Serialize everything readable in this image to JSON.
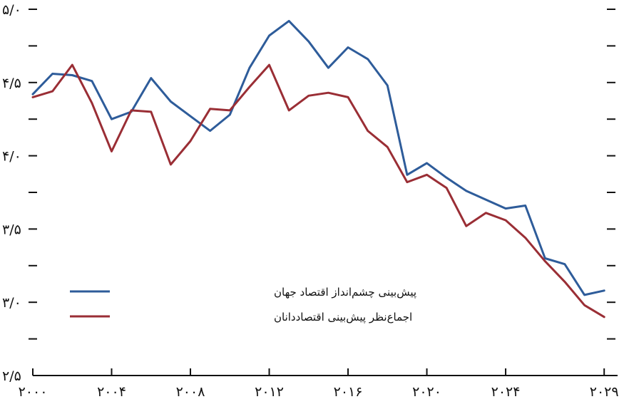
{
  "chart_data": {
    "type": "line",
    "title": "",
    "xlabel": "",
    "ylabel": "",
    "xlim": [
      2000,
      2029.5
    ],
    "ylim": [
      2.5,
      5.0
    ],
    "y_ticks": [
      2.5,
      3.0,
      3.5,
      4.0,
      4.5,
      5.0
    ],
    "y_tick_labels": [
      "۲/۵",
      "۳/۰",
      "۳/۵",
      "۴/۰",
      "۴/۵",
      "۵/۰"
    ],
    "x_ticks": [
      2000,
      2004,
      2008,
      2012,
      2016,
      2020,
      2024,
      2029
    ],
    "x_tick_labels": [
      "۲۰۰۰",
      "۲۰۰۴",
      "۲۰۰۸",
      "۲۰۱۲",
      "۲۰۱۶",
      "۲۰۲۰",
      "۲۰۲۴",
      "۲۰۲۹"
    ],
    "grid": false,
    "legend_position": "bottom-left",
    "series": [
      {
        "name": "پیش‌بینی چشم‌انداز اقتصاد جهان",
        "color": "#2E5C9A",
        "x": [
          2000,
          2001,
          2002,
          2003,
          2004,
          2005,
          2006,
          2007,
          2008,
          2009,
          2010,
          2011,
          2012,
          2013,
          2014,
          2015,
          2016,
          2017,
          2018,
          2019,
          2020,
          2021,
          2022,
          2023,
          2024,
          2025,
          2026,
          2027,
          2028,
          2029
        ],
        "values": [
          4.42,
          4.56,
          4.55,
          4.51,
          4.25,
          4.3,
          4.53,
          4.37,
          4.27,
          4.17,
          4.28,
          4.6,
          4.82,
          4.92,
          4.78,
          4.6,
          4.74,
          4.66,
          4.48,
          3.87,
          3.95,
          3.85,
          3.76,
          3.7,
          3.64,
          3.66,
          3.3,
          3.26,
          3.05,
          3.08
        ]
      },
      {
        "name": "اجماع‌نظر پیش‌بینی اقتصاددانان",
        "color": "#9A2E35",
        "x": [
          2000,
          2001,
          2002,
          2003,
          2004,
          2005,
          2006,
          2007,
          2008,
          2009,
          2010,
          2011,
          2012,
          2013,
          2014,
          2015,
          2016,
          2017,
          2018,
          2019,
          2020,
          2021,
          2022,
          2023,
          2024,
          2025,
          2026,
          2027,
          2028,
          2029
        ],
        "values": [
          4.4,
          4.44,
          4.62,
          4.36,
          4.03,
          4.31,
          4.3,
          3.94,
          4.1,
          4.32,
          4.31,
          4.47,
          4.62,
          4.31,
          4.41,
          4.43,
          4.4,
          4.17,
          4.06,
          3.82,
          3.87,
          3.78,
          3.52,
          3.61,
          3.56,
          3.44,
          3.28,
          3.14,
          2.98,
          2.9
        ]
      }
    ]
  }
}
